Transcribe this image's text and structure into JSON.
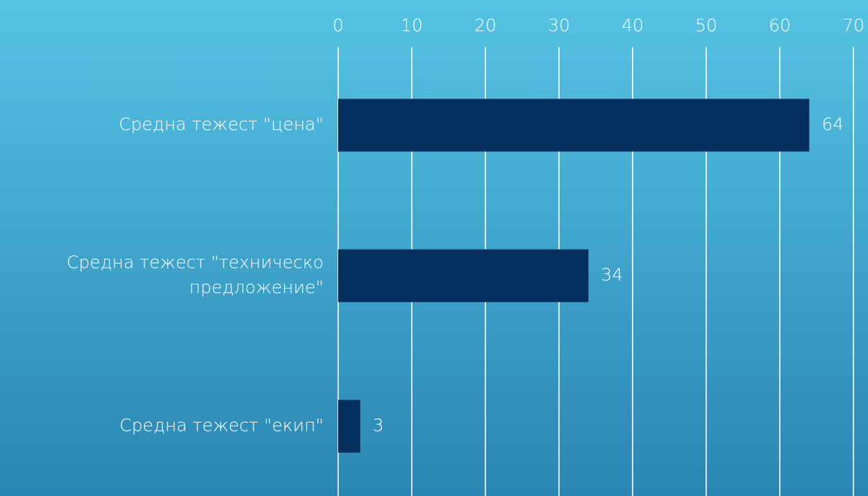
{
  "chart_data": {
    "type": "bar",
    "orientation": "horizontal",
    "categories": [
      "Средна тежест \"цена\"",
      "Средна тежест \"техническо предложение\"",
      "Средна тежест \"екип\""
    ],
    "category_lines": [
      [
        "Средна тежест \"цена\""
      ],
      [
        "Средна тежест \"техническо",
        "предложение\""
      ],
      [
        "Средна тежест \"екип\""
      ]
    ],
    "values": [
      64,
      34,
      3
    ],
    "data_labels": [
      "64",
      "34",
      "3"
    ],
    "xlim": [
      0,
      70
    ],
    "xticks": [
      0,
      10,
      20,
      30,
      40,
      50,
      60,
      70
    ],
    "xaxis_position": "top",
    "grid": true,
    "legend": "none",
    "title": "",
    "xlabel": "",
    "ylabel": ""
  },
  "colors": {
    "bar": "#052f5f",
    "background_top": "#56c3e4",
    "background_bottom": "#2a86b3",
    "text": "#ffffff",
    "grid": "#ffffff"
  }
}
